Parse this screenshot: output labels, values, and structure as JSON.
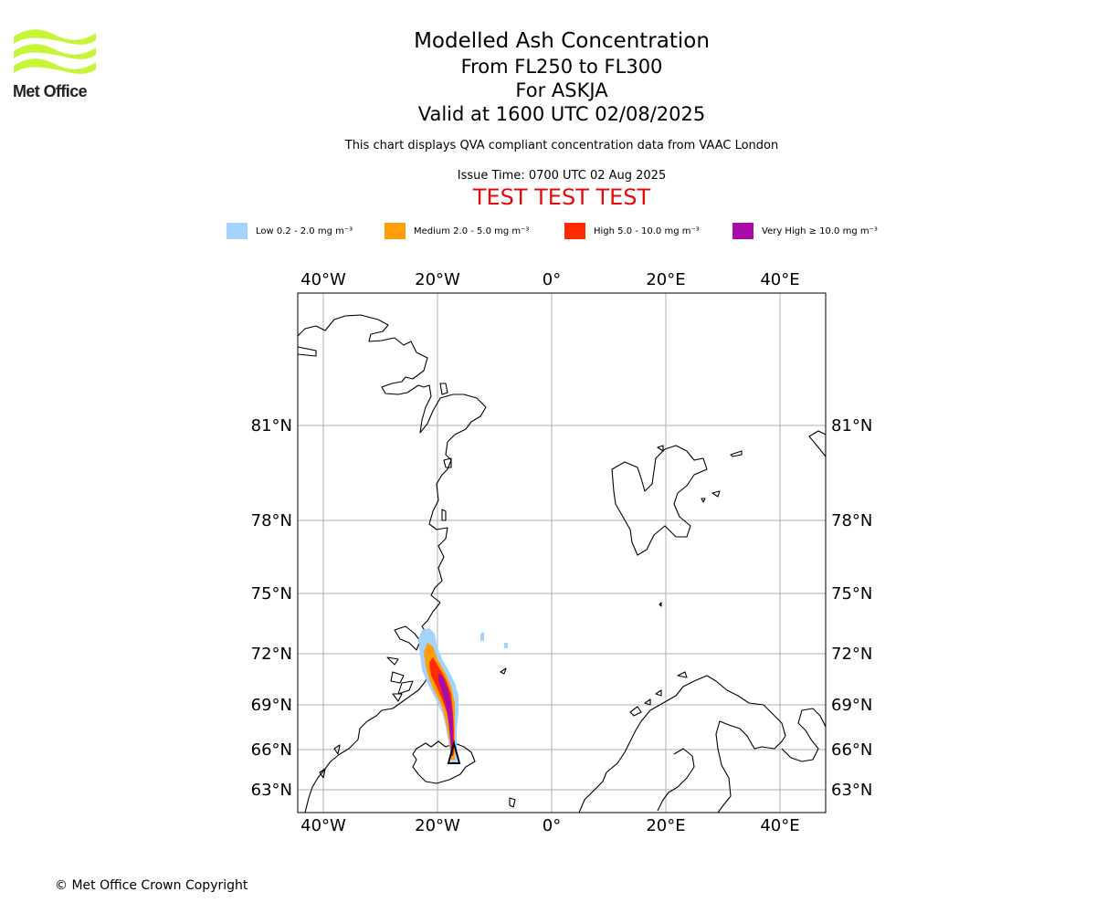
{
  "logo": {
    "text": "Met Office",
    "color": "#c8f53a"
  },
  "titles": {
    "main": "Modelled Ash Concentration",
    "levels": "From FL250 to FL300",
    "volcano": "For ASKJA",
    "valid": "Valid at 1600 UTC 02/08/2025",
    "description": "This chart displays QVA compliant concentration data from VAAC London",
    "issue_time": "Issue Time: 0700 UTC 02 Aug 2025",
    "test_banner": "TEST TEST TEST"
  },
  "legend": [
    {
      "label": "Low 0.2 - 2.0 mg m⁻³",
      "color": "#a3d3fc"
    },
    {
      "label": "Medium 2.0 - 5.0 mg m⁻³",
      "color": "#ff9e0a"
    },
    {
      "label": "High 5.0 - 10.0 mg m⁻³",
      "color": "#ff2a00"
    },
    {
      "label": "Very High ≥ 10.0 mg m⁻³",
      "color": "#aa0caa"
    }
  ],
  "map": {
    "lon_labels": [
      "40°W",
      "20°W",
      "0°",
      "20°E",
      "40°E"
    ],
    "lat_labels": [
      "81°N",
      "78°N",
      "75°N",
      "72°N",
      "69°N",
      "66°N",
      "63°N"
    ],
    "grid_color": "#b0b0b0",
    "coast_color": "#000000"
  },
  "copyright": "© Met Office Crown Copyright"
}
